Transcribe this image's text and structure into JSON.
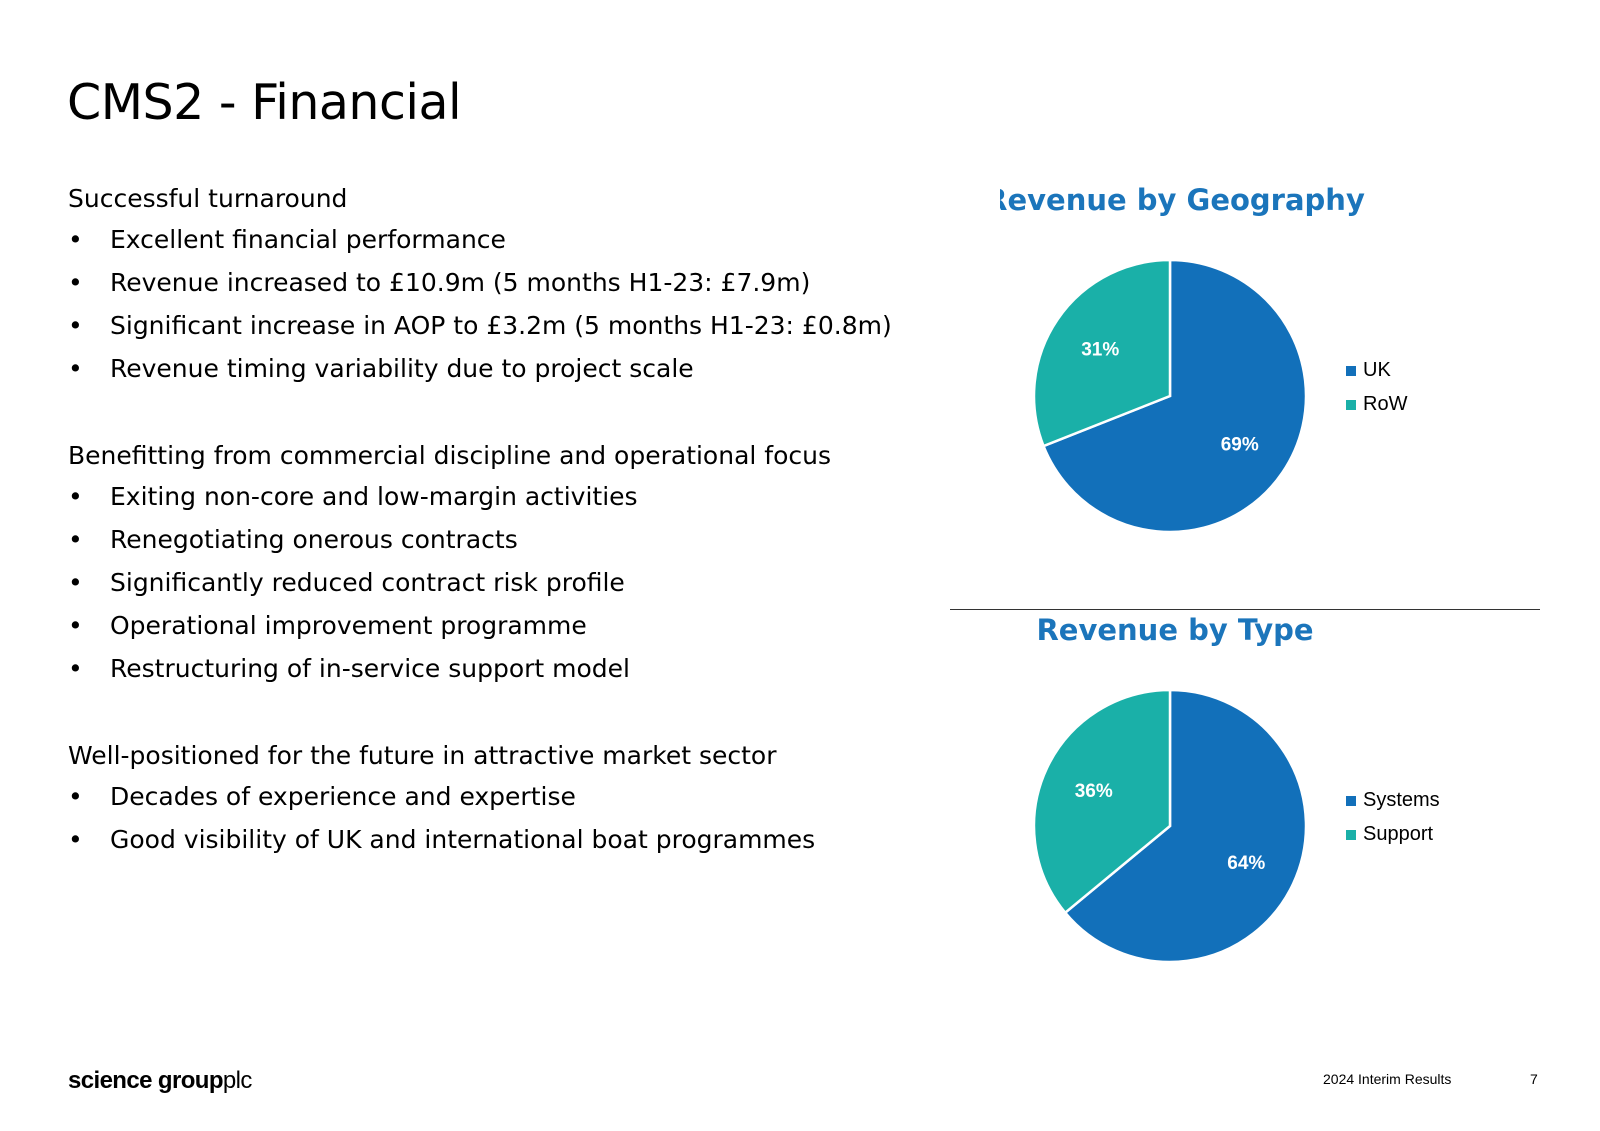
{
  "slide": {
    "title": "CMS2 - Financial"
  },
  "sections": [
    {
      "heading": "Successful turnaround",
      "bullets": [
        "Excellent financial performance",
        "Revenue increased to £10.9m (5 months H1-23: £7.9m)",
        "Significant increase in AOP to £3.2m (5 months H1-23: £0.8m)",
        "Revenue timing variability due to project scale"
      ]
    },
    {
      "heading": "Benefitting from commercial discipline and operational focus",
      "bullets": [
        "Exiting non-core and low-margin activities",
        "Renegotiating onerous contracts",
        "Significantly reduced contract risk profile",
        "Operational improvement programme",
        "Restructuring of in-service support model"
      ]
    },
    {
      "heading": "Well-positioned for the future in attractive market sector",
      "bullets": [
        "Decades of experience and expertise",
        "Good visibility of UK and international boat programmes"
      ]
    }
  ],
  "bullet_symbol": "•",
  "colors": {
    "title_blue": "#1B75BB",
    "slice_blue": "#1270BA",
    "slice_teal": "#1AB0A8",
    "text": "#000000"
  },
  "chart_data": [
    {
      "type": "pie",
      "title": "Revenue by Geography",
      "categories": [
        "UK",
        "RoW"
      ],
      "values": [
        69,
        31
      ],
      "labels": [
        "69%",
        "31%"
      ],
      "colors": [
        "#1270BA",
        "#1AB0A8"
      ],
      "legend": "right"
    },
    {
      "type": "pie",
      "title": "Revenue by Type",
      "categories": [
        "Systems",
        "Support"
      ],
      "values": [
        64,
        36
      ],
      "labels": [
        "64%",
        "36%"
      ],
      "colors": [
        "#1270BA",
        "#1AB0A8"
      ],
      "legend": "right"
    }
  ],
  "footer": {
    "logo_bold": "science group",
    "logo_light": "plc",
    "label": "2024 Interim Results",
    "page": "7"
  }
}
